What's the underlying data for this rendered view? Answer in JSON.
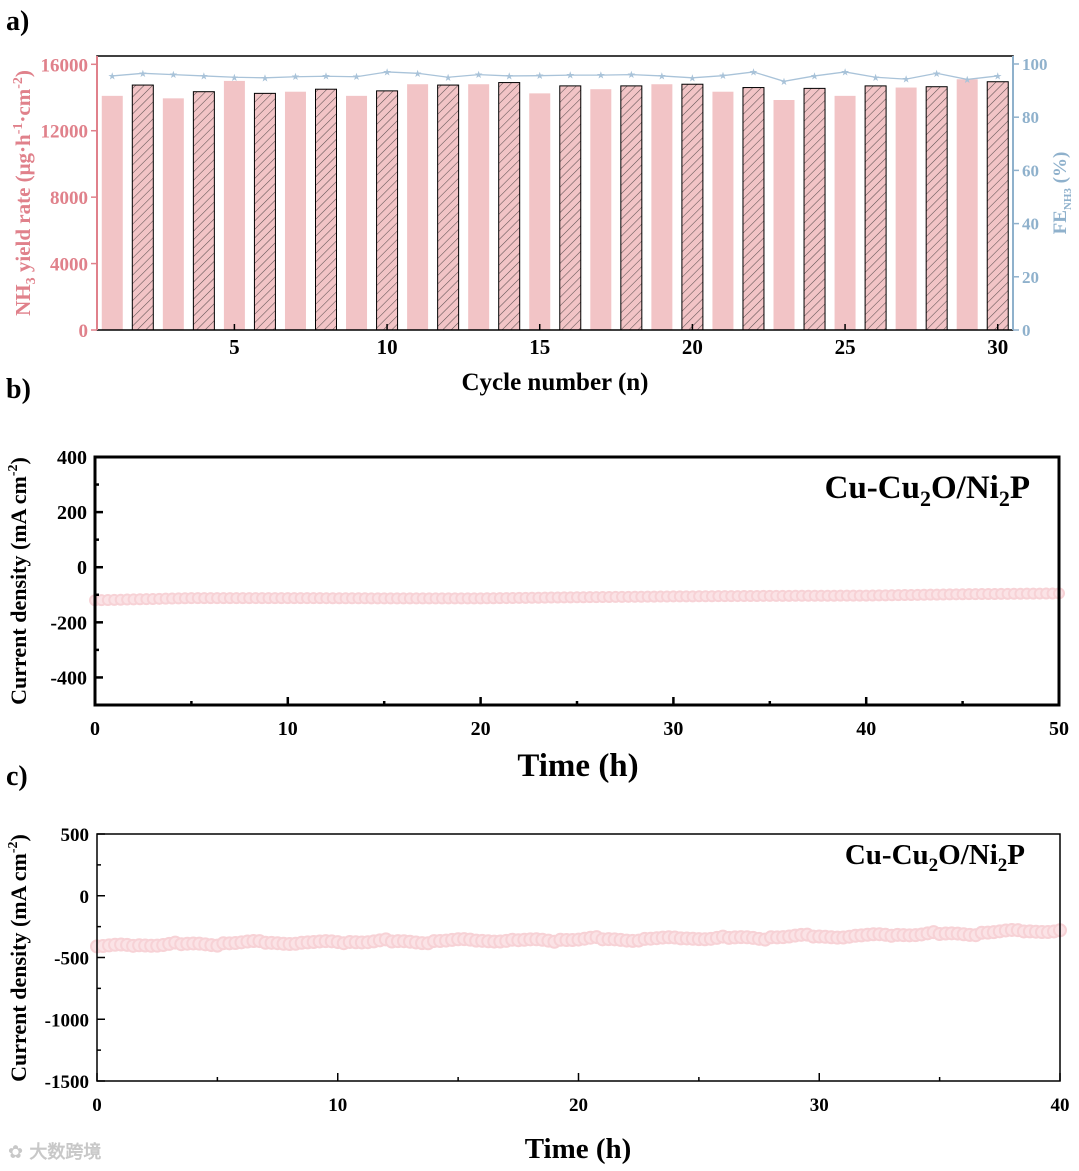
{
  "chart_data": [
    {
      "panel_label": "a)",
      "type": "bar",
      "xlabel": "Cycle number (n)",
      "ylabel_left": {
        "base": "NH",
        "sub1": "3",
        "mid": " yield rate (μg·h",
        "sup1": "-1",
        "mid2": "·cm",
        "sup2": "-2",
        "end": ")"
      },
      "ylabel_right": {
        "base": "FE",
        "sub": "NH3",
        "end": " (%)"
      },
      "x_ticks": [
        "5",
        "10",
        "15",
        "20",
        "25",
        "30"
      ],
      "y_left_ticks": [
        "0",
        "4000",
        "8000",
        "12000",
        "16000"
      ],
      "y_right_ticks": [
        "0",
        "20",
        "40",
        "60",
        "80",
        "100"
      ],
      "ylim_left": [
        0,
        16500
      ],
      "ylim_right": [
        0,
        103
      ],
      "xlim": [
        0.5,
        30.5
      ],
      "colors": {
        "bar_pink": "#f2c4c6",
        "fe_line": "#a9c3d9",
        "left_axis": "#e0818b",
        "right_axis": "#8fb1cc"
      },
      "series": [
        {
          "type": "bar",
          "axis": "left",
          "x": [
            1,
            2,
            3,
            4,
            5,
            6,
            7,
            8,
            9,
            10,
            11,
            12,
            13,
            14,
            15,
            16,
            17,
            18,
            19,
            20,
            21,
            22,
            23,
            24,
            25,
            26,
            27,
            28,
            29,
            30
          ],
          "values": [
            14100,
            14750,
            13950,
            14350,
            15000,
            14250,
            14350,
            14500,
            14100,
            14400,
            14800,
            14750,
            14800,
            14900,
            14250,
            14700,
            14500,
            14700,
            14800,
            14800,
            14350,
            14600,
            13850,
            14550,
            14100,
            14700,
            14600,
            14650,
            15100,
            14950
          ]
        },
        {
          "type": "line",
          "axis": "right",
          "marker": "star",
          "x": [
            1,
            2,
            3,
            4,
            5,
            6,
            7,
            8,
            9,
            10,
            11,
            12,
            13,
            14,
            15,
            16,
            17,
            18,
            19,
            20,
            21,
            22,
            23,
            24,
            25,
            26,
            27,
            28,
            29,
            30
          ],
          "values": [
            95.5,
            96.5,
            96,
            95.5,
            95,
            94.8,
            95.2,
            95.4,
            95.2,
            97,
            96.5,
            95,
            96,
            95.5,
            95.6,
            95.8,
            95.8,
            96,
            95.5,
            94.8,
            95.6,
            97,
            93.5,
            95.5,
            97,
            95,
            94.3,
            96.5,
            94.2,
            95.5
          ]
        }
      ]
    },
    {
      "panel_label": "b)",
      "type": "scatter",
      "xlabel": "Time (h)",
      "ylabel": "Current density (mA cm",
      "ylabel_sup": "-2",
      "ylabel_end": ")",
      "annotation": {
        "p1": "Cu-Cu",
        "s1": "2",
        "p2": "O/Ni",
        "s2": "2",
        "p3": "P"
      },
      "x_ticks": [
        "0",
        "10",
        "20",
        "30",
        "40",
        "50"
      ],
      "y_ticks": [
        "400",
        "200",
        "0",
        "-200",
        "-400"
      ],
      "xlim": [
        0,
        50
      ],
      "ylim": [
        -500,
        400
      ],
      "color": "#f7d2d6",
      "series": [
        {
          "x": [
            0,
            5,
            10,
            15,
            20,
            25,
            30,
            35,
            40,
            45,
            50
          ],
          "values": [
            -120,
            -112,
            -112,
            -113,
            -113,
            -109,
            -106,
            -104,
            -103,
            -98,
            -95
          ]
        }
      ]
    },
    {
      "panel_label": "c)",
      "type": "scatter",
      "xlabel": "Time (h)",
      "ylabel": "Current density (mA cm",
      "ylabel_sup": "-2",
      "ylabel_end": ")",
      "annotation": {
        "p1": "Cu-Cu",
        "s1": "2",
        "p2": "O/Ni",
        "s2": "2",
        "p3": "P"
      },
      "x_ticks": [
        "0",
        "10",
        "20",
        "30",
        "40"
      ],
      "y_ticks": [
        "500",
        "0",
        "-500",
        "-1000",
        "-1500"
      ],
      "xlim": [
        0,
        40
      ],
      "ylim": [
        -1500,
        500
      ],
      "color": "#f7d2d6",
      "series": [
        {
          "x": [
            0,
            5,
            10,
            15,
            20,
            25,
            30,
            35,
            40
          ],
          "values": [
            -410,
            -385,
            -375,
            -365,
            -355,
            -345,
            -330,
            -310,
            -280
          ]
        }
      ]
    }
  ],
  "watermark": "大数跨境"
}
